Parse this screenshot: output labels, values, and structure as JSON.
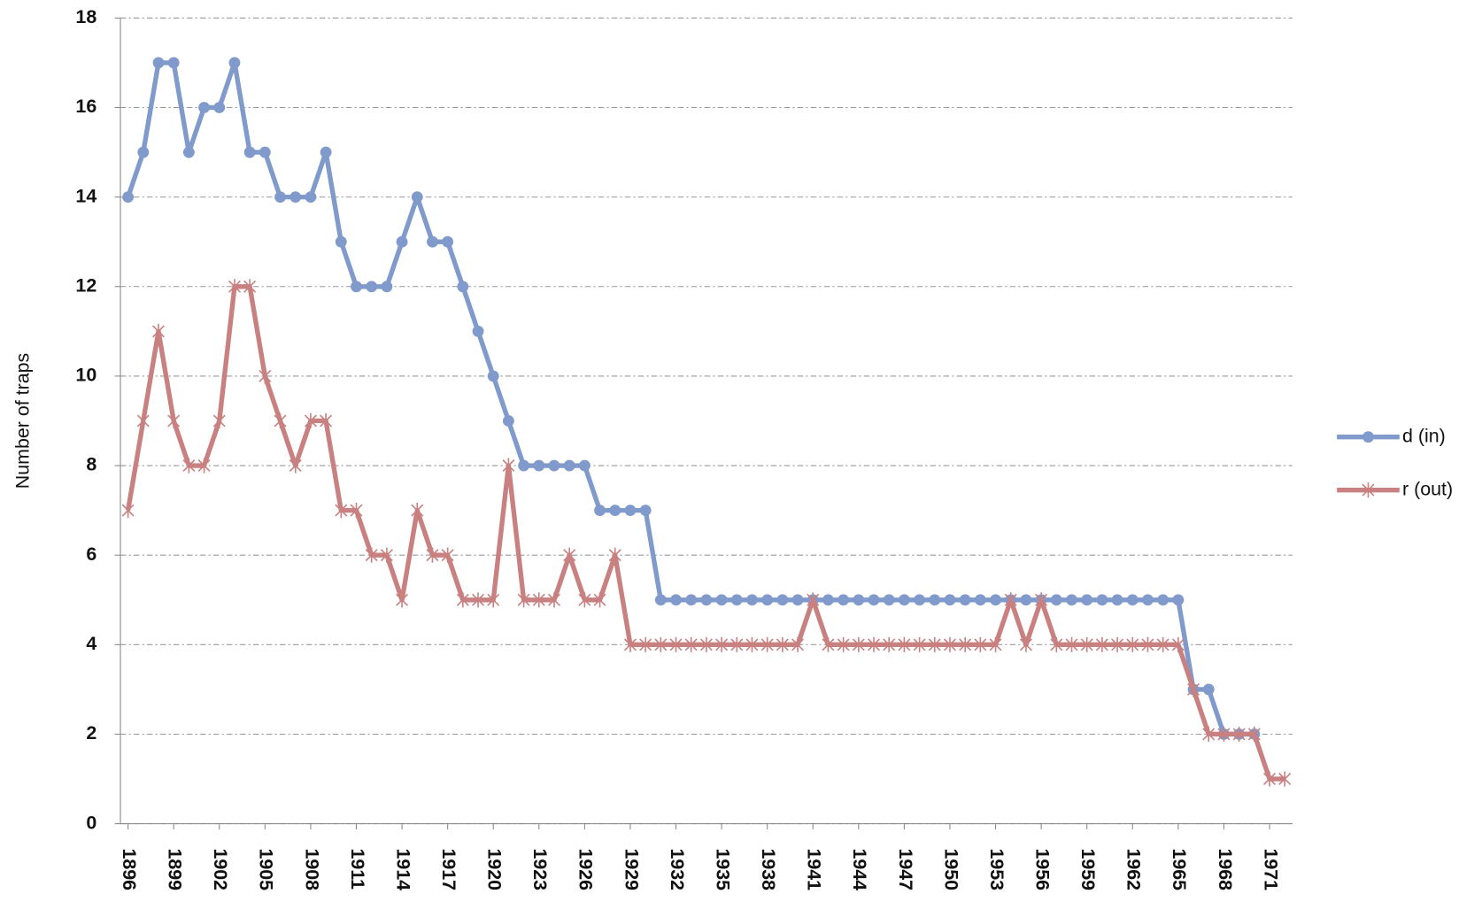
{
  "chart_data": {
    "type": "line",
    "y_label": "Number of traps",
    "x": [
      1896,
      1897,
      1898,
      1899,
      1900,
      1901,
      1902,
      1903,
      1904,
      1905,
      1906,
      1907,
      1908,
      1909,
      1910,
      1911,
      1912,
      1913,
      1914,
      1915,
      1916,
      1917,
      1918,
      1919,
      1920,
      1921,
      1922,
      1923,
      1924,
      1925,
      1926,
      1927,
      1928,
      1929,
      1930,
      1931,
      1932,
      1933,
      1934,
      1935,
      1936,
      1937,
      1938,
      1939,
      1940,
      1941,
      1942,
      1943,
      1944,
      1945,
      1946,
      1947,
      1948,
      1949,
      1950,
      1951,
      1952,
      1953,
      1954,
      1955,
      1956,
      1957,
      1958,
      1959,
      1960,
      1961,
      1962,
      1963,
      1964,
      1965,
      1966,
      1967,
      1968,
      1969,
      1970,
      1971,
      1972
    ],
    "series": [
      {
        "name": "d (in)",
        "color": "#7f9acb",
        "marker": "circle",
        "values": [
          14,
          15,
          17,
          17,
          15,
          16,
          16,
          17,
          15,
          15,
          14,
          14,
          14,
          15,
          13,
          12,
          12,
          12,
          13,
          14,
          13,
          13,
          12,
          11,
          10,
          9,
          8,
          8,
          8,
          8,
          8,
          7,
          7,
          7,
          7,
          5,
          5,
          5,
          5,
          5,
          5,
          5,
          5,
          5,
          5,
          5,
          5,
          5,
          5,
          5,
          5,
          5,
          5,
          5,
          5,
          5,
          5,
          5,
          5,
          5,
          5,
          5,
          5,
          5,
          5,
          5,
          5,
          5,
          5,
          5,
          3,
          3,
          2,
          2,
          2,
          null,
          null
        ]
      },
      {
        "name": "r (out)",
        "color": "#c98080",
        "marker": "star",
        "values": [
          7,
          9,
          11,
          9,
          8,
          8,
          9,
          12,
          12,
          10,
          9,
          8,
          9,
          9,
          7,
          7,
          6,
          6,
          5,
          7,
          6,
          6,
          5,
          5,
          5,
          8,
          5,
          5,
          5,
          6,
          5,
          5,
          6,
          4,
          4,
          4,
          4,
          4,
          4,
          4,
          4,
          4,
          4,
          4,
          4,
          5,
          4,
          4,
          4,
          4,
          4,
          4,
          4,
          4,
          4,
          4,
          4,
          4,
          5,
          4,
          5,
          4,
          4,
          4,
          4,
          4,
          4,
          4,
          4,
          4,
          3,
          2,
          2,
          2,
          2,
          1,
          1
        ]
      }
    ],
    "xlim": [
      1895.5,
      1972.5
    ],
    "xticks": [
      1896,
      1899,
      1902,
      1905,
      1908,
      1911,
      1914,
      1917,
      1920,
      1923,
      1926,
      1929,
      1932,
      1935,
      1938,
      1941,
      1944,
      1947,
      1950,
      1953,
      1956,
      1959,
      1962,
      1965,
      1968,
      1971
    ],
    "ylim": [
      0,
      18
    ],
    "yticks": [
      0,
      2,
      4,
      6,
      8,
      10,
      12,
      14,
      16,
      18
    ],
    "grid": true,
    "legend": "right"
  }
}
